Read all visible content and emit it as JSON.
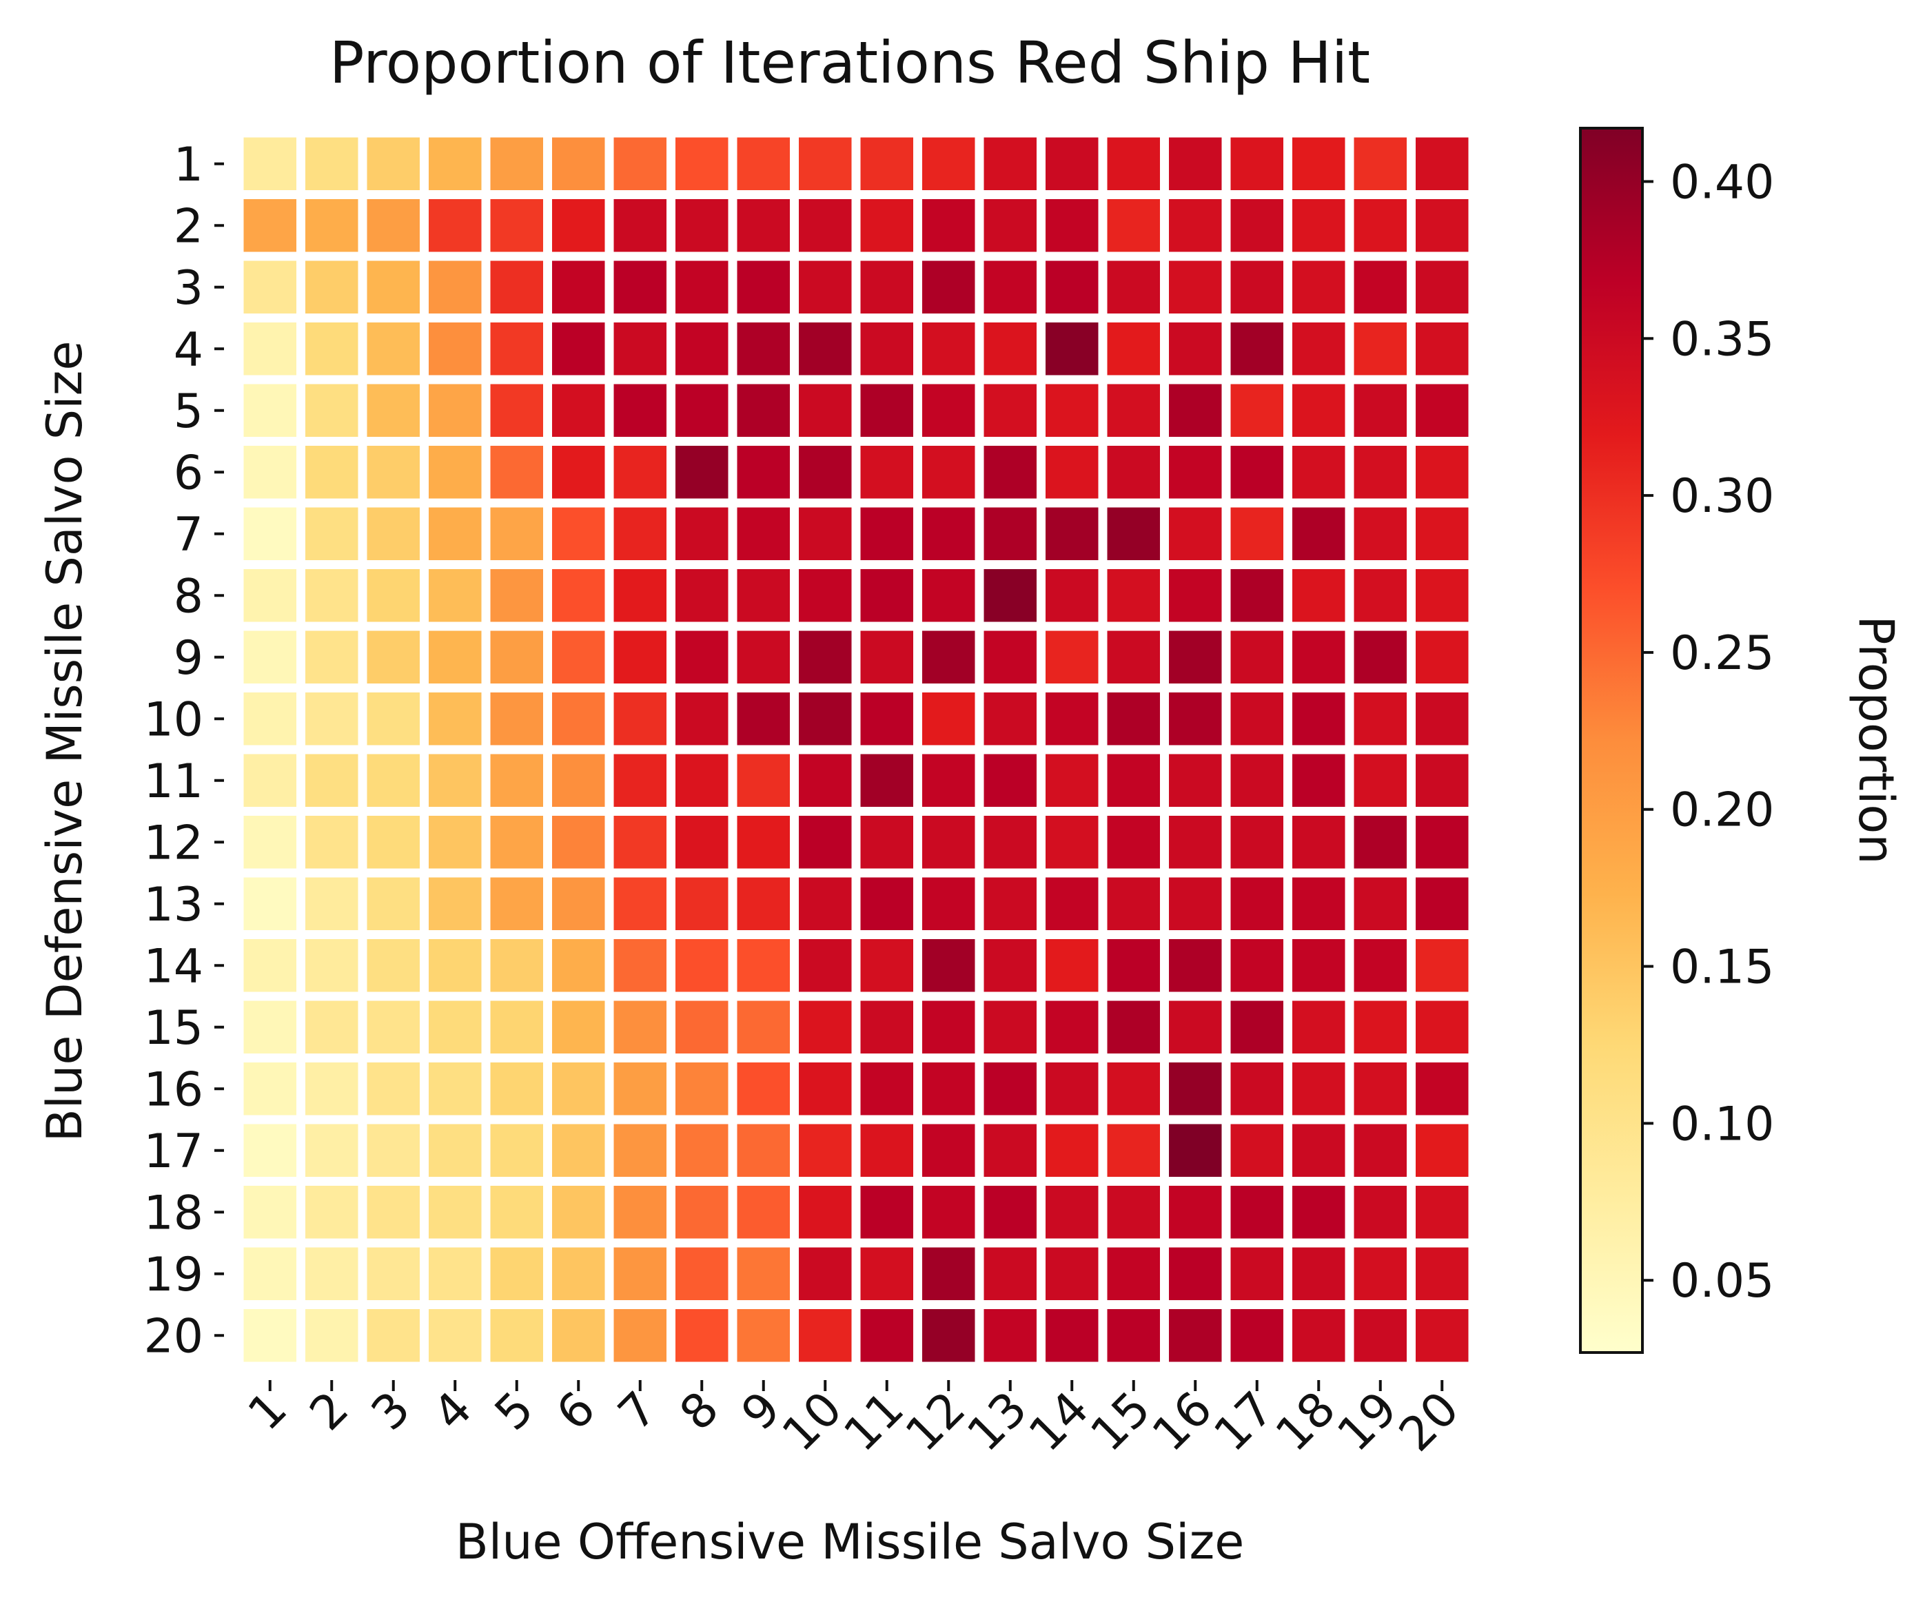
{
  "chart_data": {
    "type": "heatmap",
    "title": "Proportion of Iterations Red Ship Hit",
    "xlabel": "Blue Offensive Missile Salvo Size",
    "ylabel": "Blue Defensive Missile Salvo Size",
    "x_categories": [
      "1",
      "2",
      "3",
      "4",
      "5",
      "6",
      "7",
      "8",
      "9",
      "10",
      "11",
      "12",
      "13",
      "14",
      "15",
      "16",
      "17",
      "18",
      "19",
      "20"
    ],
    "y_categories": [
      "1",
      "2",
      "3",
      "4",
      "5",
      "6",
      "7",
      "8",
      "9",
      "10",
      "11",
      "12",
      "13",
      "14",
      "15",
      "16",
      "17",
      "18",
      "19",
      "20"
    ],
    "colorbar": {
      "label": "Proportion",
      "range": [
        0.027,
        0.417
      ],
      "ticks": [
        0.05,
        0.1,
        0.15,
        0.2,
        0.25,
        0.3,
        0.35,
        0.4
      ],
      "tick_labels": [
        "0.05",
        "0.10",
        "0.15",
        "0.20",
        "0.25",
        "0.30",
        "0.35",
        "0.40"
      ]
    },
    "colormap": [
      "#ffffcc",
      "#ffeda0",
      "#fed976",
      "#feb24c",
      "#fd8d3c",
      "#fc4e2a",
      "#e31a1c",
      "#bd0026",
      "#800026"
    ],
    "grid": false,
    "values": [
      [
        0.08,
        0.11,
        0.14,
        0.17,
        0.2,
        0.22,
        0.25,
        0.27,
        0.28,
        0.29,
        0.3,
        0.31,
        0.34,
        0.35,
        0.33,
        0.35,
        0.33,
        0.32,
        0.3,
        0.34
      ],
      [
        0.19,
        0.18,
        0.2,
        0.29,
        0.29,
        0.32,
        0.35,
        0.35,
        0.35,
        0.35,
        0.33,
        0.36,
        0.35,
        0.36,
        0.31,
        0.34,
        0.35,
        0.33,
        0.33,
        0.34
      ],
      [
        0.09,
        0.14,
        0.17,
        0.21,
        0.3,
        0.36,
        0.37,
        0.36,
        0.37,
        0.35,
        0.35,
        0.38,
        0.36,
        0.37,
        0.35,
        0.34,
        0.35,
        0.34,
        0.36,
        0.35
      ],
      [
        0.06,
        0.12,
        0.16,
        0.22,
        0.29,
        0.37,
        0.35,
        0.36,
        0.38,
        0.39,
        0.35,
        0.34,
        0.33,
        0.41,
        0.32,
        0.35,
        0.39,
        0.34,
        0.31,
        0.34
      ],
      [
        0.05,
        0.11,
        0.16,
        0.19,
        0.29,
        0.34,
        0.37,
        0.37,
        0.38,
        0.35,
        0.38,
        0.36,
        0.34,
        0.33,
        0.34,
        0.38,
        0.31,
        0.33,
        0.35,
        0.36
      ],
      [
        0.05,
        0.12,
        0.14,
        0.18,
        0.25,
        0.32,
        0.31,
        0.4,
        0.37,
        0.38,
        0.34,
        0.34,
        0.38,
        0.33,
        0.35,
        0.36,
        0.37,
        0.34,
        0.34,
        0.33
      ],
      [
        0.04,
        0.11,
        0.14,
        0.18,
        0.19,
        0.27,
        0.31,
        0.35,
        0.36,
        0.35,
        0.37,
        0.37,
        0.38,
        0.39,
        0.4,
        0.34,
        0.31,
        0.38,
        0.34,
        0.33
      ],
      [
        0.06,
        0.1,
        0.13,
        0.16,
        0.21,
        0.27,
        0.32,
        0.35,
        0.35,
        0.36,
        0.37,
        0.36,
        0.41,
        0.35,
        0.34,
        0.36,
        0.38,
        0.33,
        0.34,
        0.33
      ],
      [
        0.05,
        0.1,
        0.14,
        0.17,
        0.2,
        0.26,
        0.32,
        0.36,
        0.35,
        0.39,
        0.35,
        0.39,
        0.36,
        0.31,
        0.35,
        0.39,
        0.35,
        0.36,
        0.38,
        0.33
      ],
      [
        0.06,
        0.09,
        0.11,
        0.16,
        0.21,
        0.24,
        0.3,
        0.35,
        0.38,
        0.39,
        0.37,
        0.32,
        0.35,
        0.36,
        0.38,
        0.38,
        0.35,
        0.37,
        0.34,
        0.35
      ],
      [
        0.07,
        0.11,
        0.12,
        0.15,
        0.19,
        0.22,
        0.31,
        0.33,
        0.3,
        0.36,
        0.39,
        0.36,
        0.37,
        0.34,
        0.36,
        0.35,
        0.35,
        0.37,
        0.34,
        0.35
      ],
      [
        0.05,
        0.1,
        0.12,
        0.15,
        0.19,
        0.23,
        0.29,
        0.33,
        0.32,
        0.37,
        0.35,
        0.35,
        0.35,
        0.34,
        0.36,
        0.35,
        0.35,
        0.35,
        0.38,
        0.37
      ],
      [
        0.04,
        0.08,
        0.11,
        0.15,
        0.19,
        0.21,
        0.28,
        0.3,
        0.31,
        0.35,
        0.37,
        0.36,
        0.35,
        0.36,
        0.35,
        0.35,
        0.36,
        0.36,
        0.35,
        0.37
      ],
      [
        0.06,
        0.08,
        0.11,
        0.13,
        0.14,
        0.18,
        0.25,
        0.27,
        0.27,
        0.35,
        0.34,
        0.39,
        0.35,
        0.32,
        0.37,
        0.38,
        0.36,
        0.36,
        0.36,
        0.31
      ],
      [
        0.05,
        0.09,
        0.1,
        0.12,
        0.13,
        0.17,
        0.22,
        0.25,
        0.25,
        0.33,
        0.35,
        0.36,
        0.35,
        0.36,
        0.38,
        0.35,
        0.38,
        0.34,
        0.33,
        0.33
      ],
      [
        0.05,
        0.07,
        0.1,
        0.11,
        0.13,
        0.15,
        0.2,
        0.23,
        0.27,
        0.33,
        0.36,
        0.36,
        0.37,
        0.35,
        0.34,
        0.4,
        0.35,
        0.34,
        0.34,
        0.36
      ],
      [
        0.04,
        0.07,
        0.09,
        0.11,
        0.12,
        0.15,
        0.21,
        0.24,
        0.25,
        0.31,
        0.33,
        0.36,
        0.35,
        0.32,
        0.31,
        0.42,
        0.34,
        0.35,
        0.35,
        0.32
      ],
      [
        0.05,
        0.08,
        0.1,
        0.11,
        0.12,
        0.15,
        0.22,
        0.25,
        0.26,
        0.33,
        0.37,
        0.36,
        0.37,
        0.35,
        0.35,
        0.36,
        0.37,
        0.37,
        0.35,
        0.34
      ],
      [
        0.05,
        0.07,
        0.09,
        0.1,
        0.13,
        0.15,
        0.21,
        0.26,
        0.24,
        0.35,
        0.34,
        0.39,
        0.35,
        0.35,
        0.36,
        0.37,
        0.35,
        0.35,
        0.34,
        0.34
      ],
      [
        0.04,
        0.06,
        0.1,
        0.1,
        0.12,
        0.15,
        0.21,
        0.27,
        0.24,
        0.31,
        0.37,
        0.4,
        0.36,
        0.37,
        0.37,
        0.38,
        0.37,
        0.35,
        0.35,
        0.34
      ]
    ]
  }
}
